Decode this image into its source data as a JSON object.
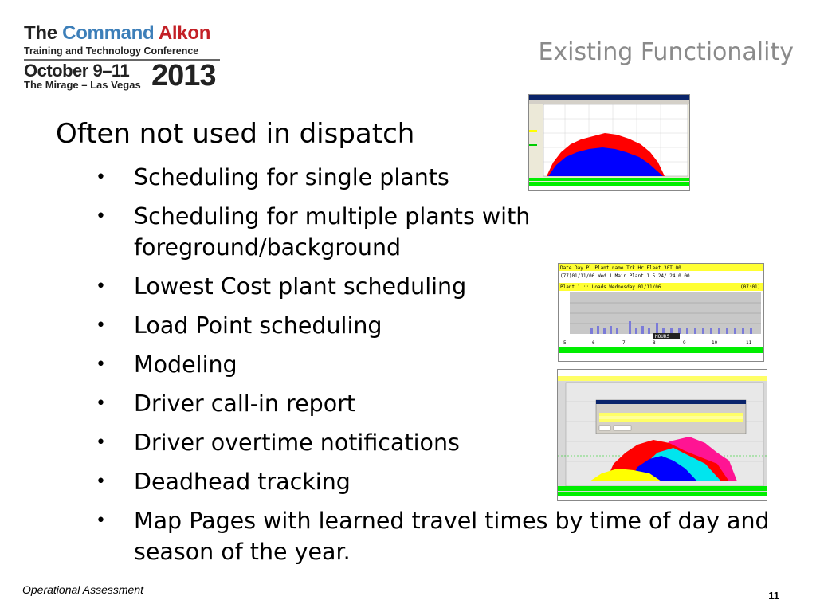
{
  "logo": {
    "line1_prefix": "The",
    "line1_command": "Command",
    "line1_alkon": "Alkon",
    "line2": "Training and Technology Conference",
    "line3": "October 9–11",
    "line4": "The Mirage – Las Vegas",
    "year": "2013",
    "colors": {
      "command": "#3d7fb9",
      "alkon": "#c32026"
    }
  },
  "slide_title": "Existing Functionality",
  "heading": "Often not used in dispatch",
  "bullets": [
    "Scheduling for single plants",
    "Scheduling for multiple plants with foreground/background",
    "Lowest Cost plant scheduling",
    "Load Point scheduling",
    "Modeling",
    "Driver call-in report",
    "Driver overtime notifications",
    "Deadhead tracking",
    "Map Pages with learned travel times by time of day and season of the year."
  ],
  "screenshot_2": {
    "header": "Date   Day  Pl  Plant name          Trk  Hr   Fleet   30T.00",
    "row": "(77)01/11/06   Wed   1  Main Plant          1    5   24/ 24    0.00",
    "panel_title": "Plant 1 :: Loads  Wednesday 01/11/06",
    "panel_right": "(07:01)",
    "hours_label": "HOURS",
    "hour_ticks": [
      "5",
      "6",
      "7",
      "8",
      "9",
      "10",
      "11"
    ]
  },
  "footer": {
    "left": "Operational Assessment",
    "page_number": "11"
  }
}
